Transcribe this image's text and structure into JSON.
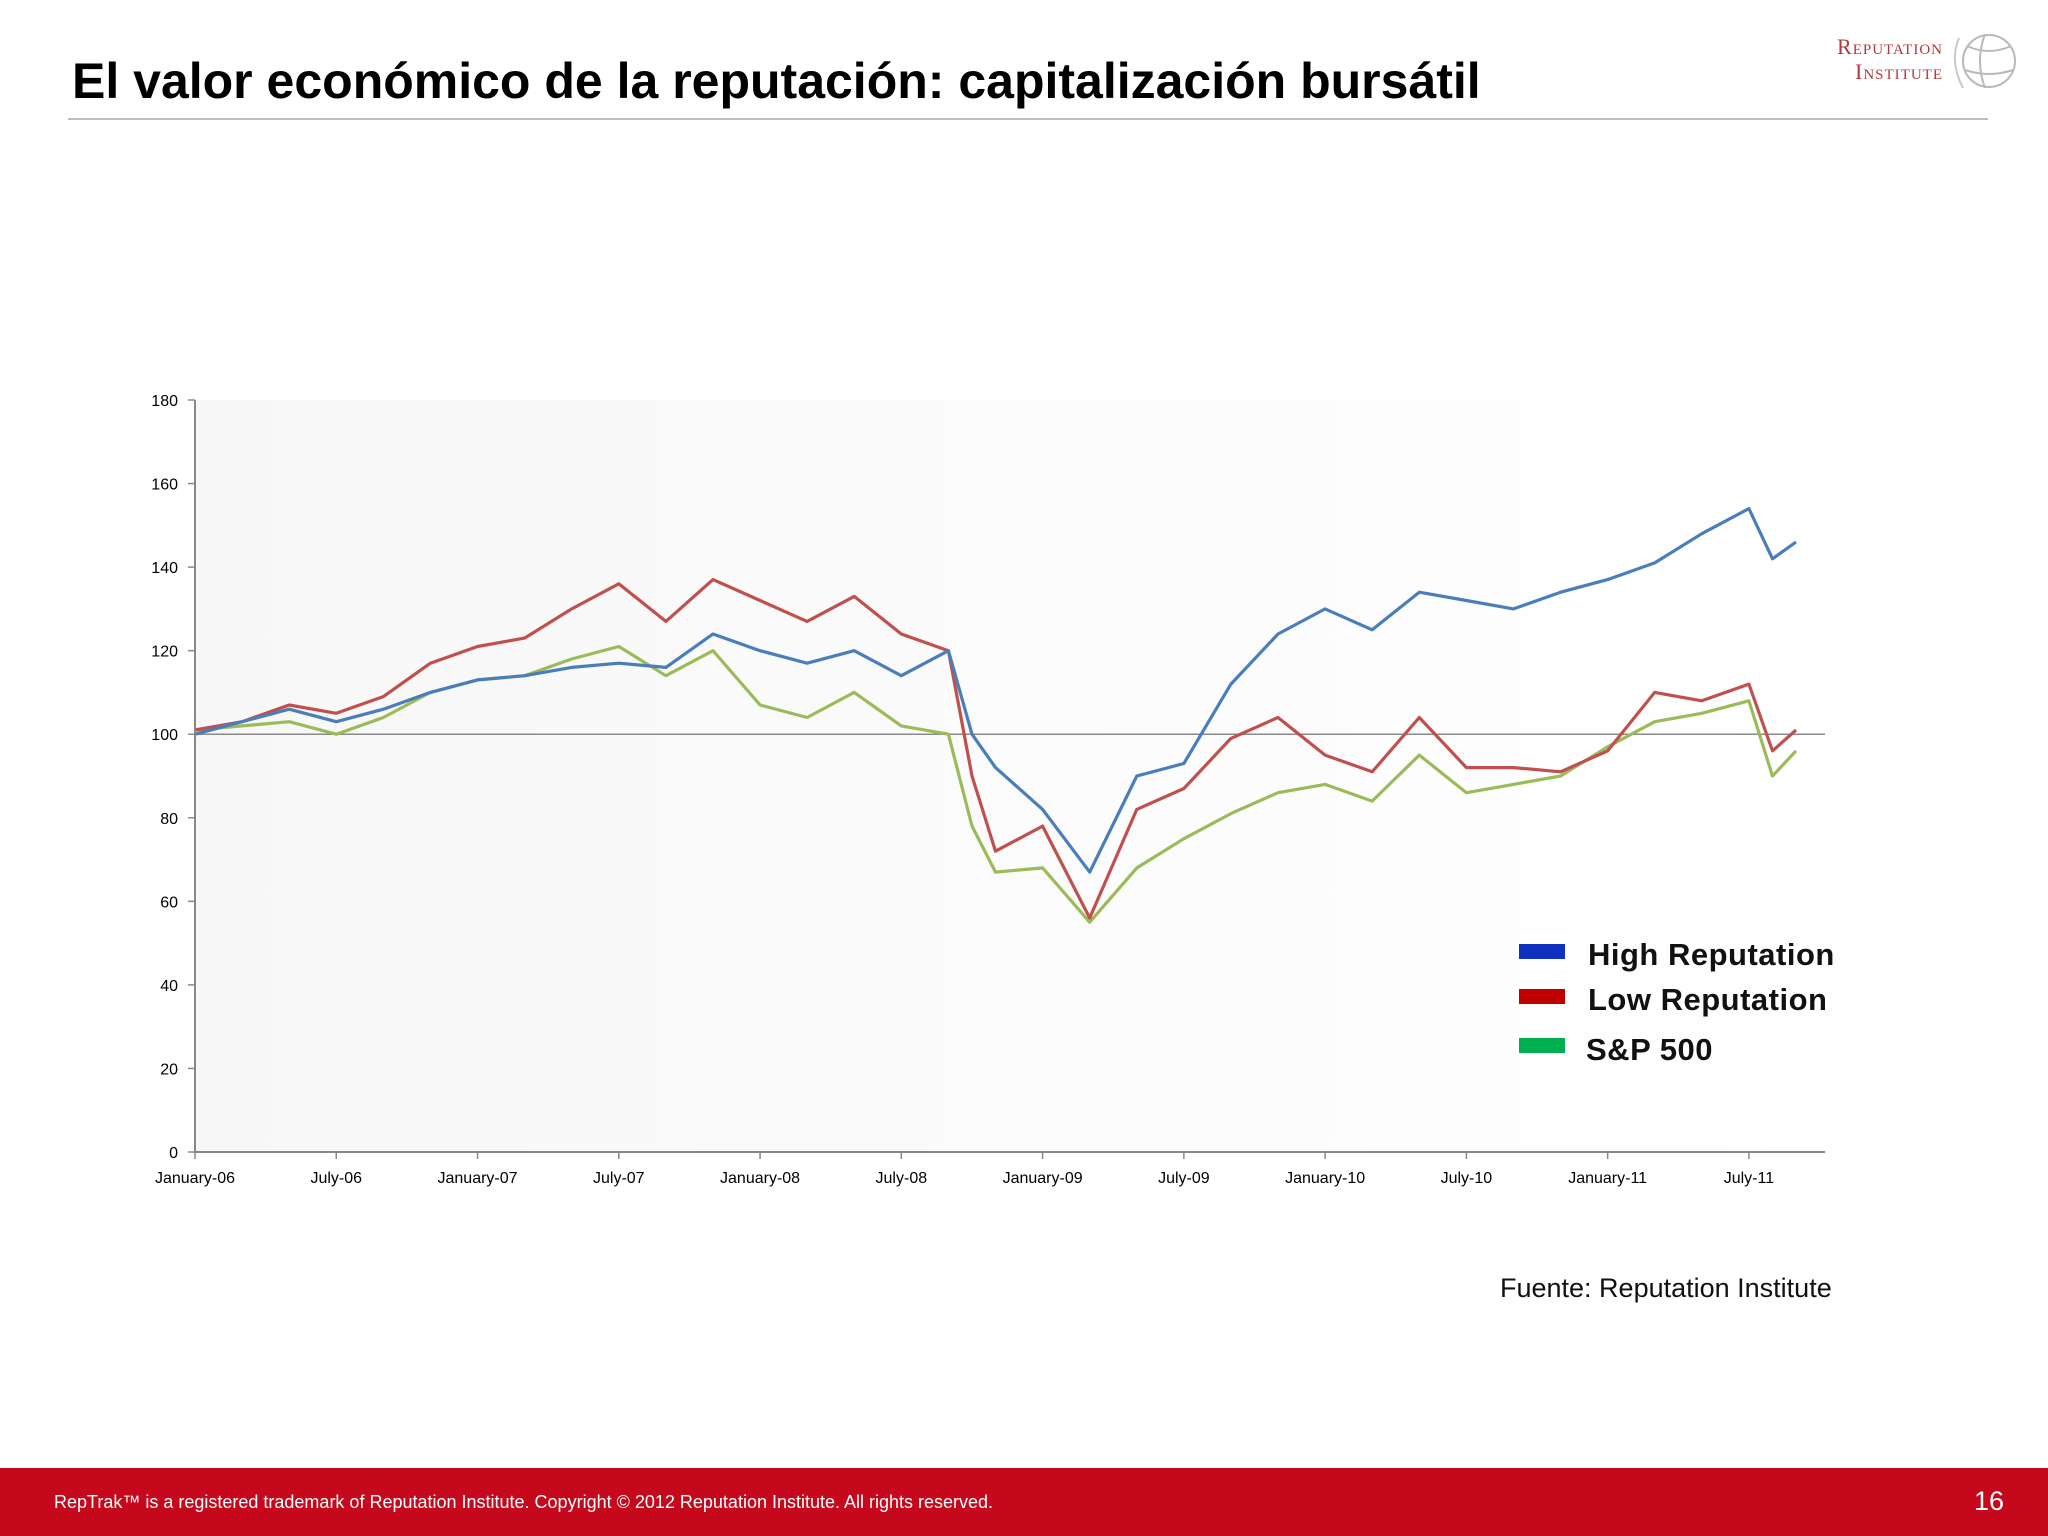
{
  "slide": {
    "title": "El valor económico de la reputación: capitalización bursátil",
    "source": "Fuente: Reputation Institute",
    "footer": "RepTrak™ is a registered trademark of Reputation Institute. Copyright © 2012 Reputation Institute. All rights reserved.",
    "page_number": "16"
  },
  "logo": {
    "line1": "Reputation",
    "line2": "Institute",
    "icon": "globe-icon",
    "color": "#b0383d"
  },
  "colors": {
    "footer_bar": "#c5081b"
  },
  "chart_data": {
    "type": "line",
    "title": "",
    "xlabel": "",
    "ylabel": "",
    "ylim": [
      0,
      180
    ],
    "yticks": [
      "0",
      "20",
      "40",
      "60",
      "80",
      "100",
      "120",
      "140",
      "160",
      "180"
    ],
    "xticks": [
      "January-06",
      "July-06",
      "January-07",
      "July-07",
      "January-08",
      "July-08",
      "January-09",
      "July-09",
      "January-10",
      "July-10",
      "January-11",
      "July-11"
    ],
    "reference_line": 100,
    "grid": false,
    "legend_position": "bottom-right",
    "x": [
      "2006-01",
      "2006-03",
      "2006-05",
      "2006-07",
      "2006-09",
      "2006-11",
      "2007-01",
      "2007-03",
      "2007-05",
      "2007-07",
      "2007-09",
      "2007-11",
      "2008-01",
      "2008-03",
      "2008-05",
      "2008-07",
      "2008-09",
      "2008-10",
      "2008-11",
      "2009-01",
      "2009-03",
      "2009-05",
      "2009-07",
      "2009-09",
      "2009-11",
      "2010-01",
      "2010-03",
      "2010-05",
      "2010-07",
      "2010-09",
      "2010-11",
      "2011-01",
      "2011-03",
      "2011-05",
      "2011-07",
      "2011-08",
      "2011-09"
    ],
    "series": [
      {
        "name": "High Reputation",
        "legend_color": "#1030c0",
        "line_color": "#4a7ebb",
        "values": [
          100,
          103,
          106,
          103,
          106,
          110,
          113,
          114,
          116,
          117,
          116,
          124,
          120,
          117,
          120,
          114,
          120,
          100,
          92,
          82,
          67,
          90,
          93,
          112,
          124,
          130,
          125,
          134,
          132,
          130,
          134,
          137,
          141,
          148,
          154,
          142,
          146
        ]
      },
      {
        "name": "Low Reputation",
        "legend_color": "#c00000",
        "line_color": "#c0504d",
        "values": [
          101,
          103,
          107,
          105,
          109,
          117,
          121,
          123,
          130,
          136,
          127,
          137,
          132,
          127,
          133,
          124,
          120,
          90,
          72,
          78,
          56,
          82,
          87,
          99,
          104,
          95,
          91,
          104,
          92,
          92,
          91,
          96,
          110,
          108,
          112,
          96,
          101
        ]
      },
      {
        "name": "S&P 500",
        "legend_color": "#00b050",
        "line_color": "#9bbb59",
        "values": [
          101,
          102,
          103,
          100,
          104,
          110,
          113,
          114,
          118,
          121,
          114,
          120,
          107,
          104,
          110,
          102,
          100,
          78,
          67,
          68,
          55,
          68,
          75,
          81,
          86,
          88,
          84,
          95,
          86,
          88,
          90,
          97,
          103,
          105,
          108,
          90,
          96
        ]
      }
    ]
  }
}
